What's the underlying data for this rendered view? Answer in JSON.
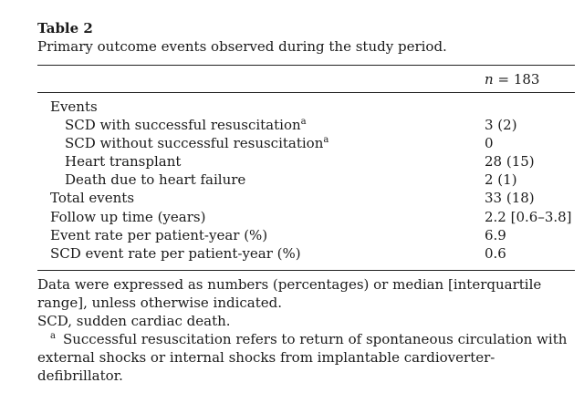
{
  "table": {
    "title": "Table 2",
    "caption": "Primary outcome events observed during the study period.",
    "column_header": {
      "variable": "n",
      "equals": "=",
      "value": "183"
    },
    "rows": [
      {
        "label": "Events",
        "value": "",
        "footnote": ""
      },
      {
        "label": "SCD with successful resuscitation",
        "value": "3 (2)",
        "footnote": "a"
      },
      {
        "label": "SCD without successful resuscitation",
        "value": "0",
        "footnote": "a"
      },
      {
        "label": "Heart transplant",
        "value": "28 (15)",
        "footnote": ""
      },
      {
        "label": "Death due to heart failure",
        "value": "2 (1)",
        "footnote": ""
      },
      {
        "label": "Total events",
        "value": "33 (18)",
        "footnote": ""
      },
      {
        "label": "Follow up time (years)",
        "value": "2.2 [0.6–3.8]",
        "footnote": ""
      },
      {
        "label": "Event rate per patient-year (%)",
        "value": "6.9",
        "footnote": ""
      },
      {
        "label": "SCD event rate per patient-year (%)",
        "value": "0.6",
        "footnote": ""
      }
    ]
  },
  "footnotes": {
    "general": "Data were expressed as numbers (percentages) or median [interquartile range], unless otherwise indicated.",
    "abbreviation": "SCD, sudden cardiac death.",
    "marker": "a",
    "note_a": "Successful resuscitation refers to return of spontaneous circulation with external shocks or internal shocks from implantable cardioverter-defibrillator."
  }
}
